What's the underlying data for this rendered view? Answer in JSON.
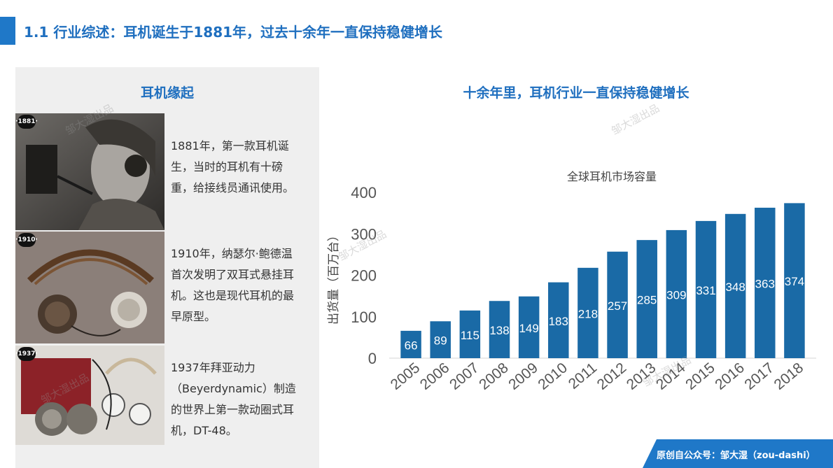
{
  "header": {
    "title": "1.1 行业综述：耳机诞生于1881年，过去十余年一直保持稳健增长"
  },
  "left": {
    "heading": "耳机缘起",
    "items": [
      {
        "badge": "·1881·",
        "lines": [
          "1881年，第一款耳机诞",
          "生，当时的耳机有十磅",
          "重，给接线员通讯使用。"
        ]
      },
      {
        "badge": "·1910·",
        "lines": [
          "1910年，纳瑟尔·鲍德温",
          "首次发明了双耳式悬挂耳",
          "机。这也是现代耳机的最",
          "早原型。"
        ]
      },
      {
        "badge": "·1937·",
        "lines": [
          "1937年拜亚动力",
          "（Beyerdynamic）制造",
          "的世界上第一款动圈式耳",
          "机，DT-48。"
        ]
      }
    ]
  },
  "right": {
    "heading": "十余年里，耳机行业一直保持稳健增长"
  },
  "watermark": "邹大湿出品",
  "footer": {
    "text": "原创自公众号：邹大湿（zou-dashi）"
  },
  "chart_data": {
    "type": "bar",
    "title": "全球耳机市场容量",
    "xlabel": "",
    "ylabel": "出货量（百万台）",
    "categories": [
      "2005",
      "2006",
      "2007",
      "2008",
      "2009",
      "2010",
      "2011",
      "2012",
      "2013",
      "2014",
      "2015",
      "2016",
      "2017",
      "2018"
    ],
    "values": [
      66,
      89,
      115,
      138,
      149,
      183,
      218,
      257,
      285,
      309,
      331,
      348,
      363,
      374
    ],
    "ylim": [
      0,
      400
    ],
    "yticks": [
      0,
      100,
      200,
      300,
      400
    ],
    "bar_color": "#1a6aa6",
    "grid": false
  }
}
